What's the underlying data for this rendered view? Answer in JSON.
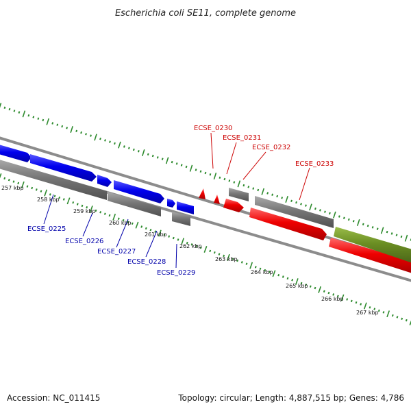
{
  "title": "Escherichia coli SE11, complete genome",
  "footer": {
    "accession": "Accession: NC_011415",
    "summary": "Topology: circular; Length: 4,887,515 bp; Genes: 4,786"
  },
  "colors": {
    "forward_gene": "#0000ee",
    "reverse_gene": "#ee0000",
    "other_feature": "#6b8e23",
    "gene_body": "#777777",
    "backbone": "#8c8c8c",
    "tick": "#2e8b2e",
    "label_forward": "#0000aa",
    "label_reverse": "#cc0000"
  },
  "kbp_labels": [
    "257 kbp",
    "258 kbp",
    "259 kbp",
    "260 kbp",
    "261 kbp",
    "262 kbp",
    "263 kbp",
    "264 kbp",
    "265 kbp",
    "266 kbp",
    "267 kbp"
  ],
  "gene_labels": [
    {
      "id": "ECSE_0225",
      "strand": "forward"
    },
    {
      "id": "ECSE_0226",
      "strand": "forward"
    },
    {
      "id": "ECSE_0227",
      "strand": "forward"
    },
    {
      "id": "ECSE_0228",
      "strand": "forward"
    },
    {
      "id": "ECSE_0229",
      "strand": "forward"
    },
    {
      "id": "ECSE_0230",
      "strand": "reverse"
    },
    {
      "id": "ECSE_0231",
      "strand": "reverse"
    },
    {
      "id": "ECSE_0232",
      "strand": "reverse"
    },
    {
      "id": "ECSE_0233",
      "strand": "reverse"
    }
  ]
}
